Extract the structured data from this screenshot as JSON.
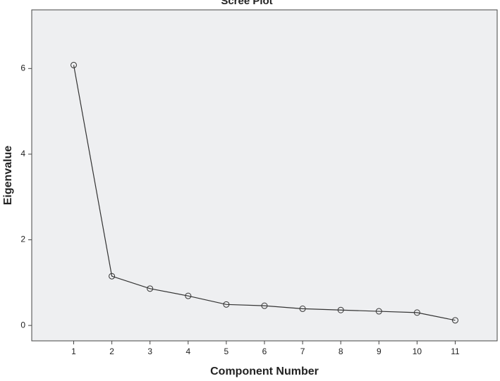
{
  "chart_data": {
    "type": "line",
    "title": "Scree Plot",
    "xlabel": "Component Number",
    "ylabel": "Eigenvalue",
    "x": [
      1,
      2,
      3,
      4,
      5,
      6,
      7,
      8,
      9,
      10,
      11
    ],
    "series": [
      {
        "color": "#333333",
        "values": [
          6.08,
          1.15,
          0.86,
          0.69,
          0.49,
          0.46,
          0.39,
          0.36,
          0.33,
          0.3,
          0.12
        ]
      }
    ],
    "xlim": [
      -0.1,
      12.1
    ],
    "xticks": [
      1,
      2,
      3,
      4,
      5,
      6,
      7,
      8,
      9,
      10,
      11
    ],
    "ylim": [
      -0.36,
      7.37
    ],
    "yticks": [
      0,
      2,
      4,
      6
    ],
    "grid": false
  }
}
